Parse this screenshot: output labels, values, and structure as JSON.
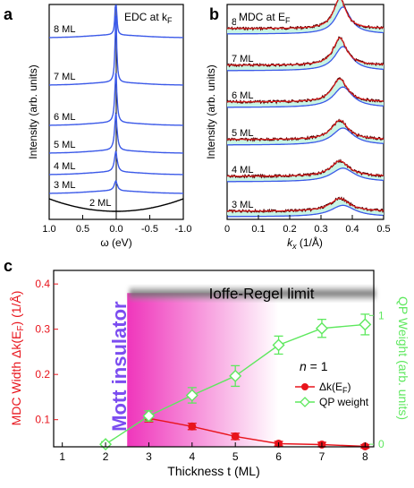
{
  "chart_data": [
    {
      "panel": "a",
      "type": "line",
      "title": "EDC at k",
      "title_sub": "F",
      "xlabel": "ω (eV)",
      "ylabel": "Intensity (arb. units)",
      "xlim": [
        1.0,
        -1.0
      ],
      "xticks": [
        "1.0",
        "0.5",
        "0.0",
        "-0.5",
        "-1.0"
      ],
      "curve_color": "#3b59e8",
      "series": [
        {
          "name": "8 ML",
          "peak_height": 1.0
        },
        {
          "name": "7 ML",
          "peak_height": 0.85
        },
        {
          "name": "6 ML",
          "peak_height": 0.62
        },
        {
          "name": "5 ML",
          "peak_height": 0.45
        },
        {
          "name": "4 ML",
          "peak_height": 0.25
        },
        {
          "name": "3 ML",
          "peak_height": 0.12
        },
        {
          "name": "2 ML",
          "peak_height": 0.0
        }
      ]
    },
    {
      "panel": "b",
      "type": "line",
      "title": "MDC at E",
      "title_sub": "F",
      "xlabel": "k",
      "xlabel_sub": "x",
      "xlabel_unit": " (1/Å)",
      "ylabel": "Intensity (arb. units)",
      "xlim": [
        0,
        0.5
      ],
      "xticks": [
        "0",
        "0.1",
        "0.2",
        "0.3",
        "0.4",
        "0.5"
      ],
      "peak_position": 0.36,
      "colors": {
        "data": "#5a0000",
        "fit": "#ee2222",
        "background": "#3b59e8",
        "fill": "#c8f4e4"
      },
      "series": [
        {
          "name": "8 ML",
          "peak_height": 0.95
        },
        {
          "name": "7 ML",
          "peak_height": 0.85
        },
        {
          "name": "6 ML",
          "peak_height": 0.72
        },
        {
          "name": "5 ML",
          "peak_height": 0.6
        },
        {
          "name": "4 ML",
          "peak_height": 0.48
        },
        {
          "name": "3 ML",
          "peak_height": 0.4
        }
      ]
    },
    {
      "panel": "c",
      "type": "line",
      "title": "",
      "xlabel": "Thickness t (ML)",
      "ylabel_left": "MDC Width Δk(E",
      "ylabel_left_sub": "F",
      "ylabel_left_end": ") (1/Å)",
      "ylabel_right": "QP Weight (arb. units)",
      "xlim": [
        0.8,
        8.2
      ],
      "ylim_left": [
        0.04,
        0.43
      ],
      "ylim_right": [
        -0.02,
        1.35
      ],
      "x": [
        1,
        2,
        3,
        4,
        5,
        6,
        7,
        8
      ],
      "x_tick_labels": [
        "1",
        "2",
        "3",
        "4",
        "5",
        "6",
        "7",
        "8"
      ],
      "y_left_ticks": [
        0.1,
        0.2,
        0.3,
        0.4
      ],
      "y_left_tick_labels": [
        "0.1",
        "0.2",
        "0.3",
        "0.4"
      ],
      "y_right_ticks": [
        0,
        1
      ],
      "y_right_tick_labels": [
        "0",
        "1"
      ],
      "annotations": {
        "ioffe_regel": "Ioffe-Regel limit",
        "ioffe_regel_value": 0.38,
        "mott": "Mott insulator",
        "mott_region": [
          2.5,
          6.0
        ]
      },
      "legend": {
        "title": "n = 1",
        "placement": "center-right"
      },
      "series": [
        {
          "name": "Δk(E",
          "name_sub": "F",
          "name_end": ")",
          "axis": "left",
          "color": "#e8141c",
          "x": [
            3,
            4,
            5,
            6,
            7,
            8
          ],
          "values": [
            0.103,
            0.085,
            0.063,
            0.047,
            0.045,
            0.041
          ],
          "errors": [
            0.008,
            0.007,
            0.007,
            0.005,
            0.005,
            0.004
          ]
        },
        {
          "name": "QP weight",
          "axis": "right",
          "color": "#5ee85e",
          "x": [
            2,
            3,
            4,
            5,
            6,
            7,
            8
          ],
          "values": [
            0.0,
            0.22,
            0.38,
            0.53,
            0.77,
            0.9,
            0.93
          ],
          "errors": [
            0.02,
            0.04,
            0.06,
            0.08,
            0.07,
            0.07,
            0.08
          ]
        }
      ],
      "panel_labels": {
        "a": "a",
        "b": "b",
        "c": "c"
      }
    }
  ]
}
